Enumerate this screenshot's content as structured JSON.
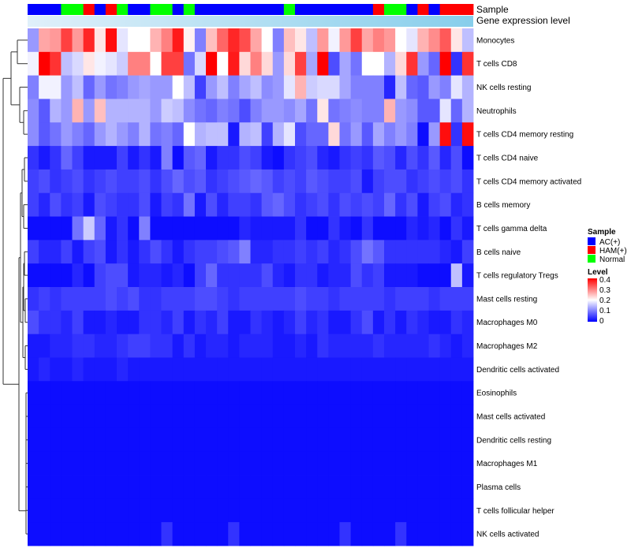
{
  "chart_data": {
    "type": "heatmap",
    "annotation_labels": [
      "Sample",
      "Gene expression level"
    ],
    "rows": [
      "Monocytes",
      "T cells CD8",
      "NK cells resting",
      "Neutrophils",
      "T cells CD4 memory resting",
      "T cells CD4 naive",
      "T cells CD4 memory activated",
      "B cells memory",
      "T cells gamma delta",
      "B cells naive",
      "T cells regulatory  Tregs",
      "Mast cells resting",
      "Macrophages M0",
      "Macrophages M2",
      "Dendritic cells activated",
      "Eosinophils",
      "Mast cells activated",
      "Dendritic cells resting",
      "Macrophages M1",
      "Plasma cells",
      "T cells follicular helper",
      "NK cells activated"
    ],
    "sample_groups": [
      "AC",
      "AC",
      "AC",
      "Normal",
      "Normal",
      "HAM",
      "AC",
      "HAM",
      "Normal",
      "AC",
      "AC",
      "Normal",
      "Normal",
      "AC",
      "Normal",
      "AC",
      "AC",
      "AC",
      "AC",
      "AC",
      "AC",
      "AC",
      "AC",
      "Normal",
      "AC",
      "AC",
      "AC",
      "AC",
      "AC",
      "AC",
      "AC",
      "HAM",
      "Normal",
      "Normal",
      "AC",
      "HAM",
      "AC",
      "HAM",
      "HAM",
      "HAM"
    ],
    "values": [
      [
        0.12,
        0.27,
        0.28,
        0.35,
        0.28,
        0.37,
        0.22,
        0.39,
        0.18,
        0.2,
        0.2,
        0.26,
        0.3,
        0.38,
        0.21,
        0.1,
        0.25,
        0.32,
        0.37,
        0.34,
        0.27,
        0.2,
        0.1,
        0.25,
        0.22,
        0.15,
        0.28,
        0.19,
        0.28,
        0.35,
        0.27,
        0.3,
        0.28,
        0.2,
        0.18,
        0.26,
        0.29,
        0.33,
        0.22,
        0.15
      ],
      [
        0.19,
        0.42,
        0.36,
        0.15,
        0.17,
        0.22,
        0.19,
        0.18,
        0.16,
        0.3,
        0.3,
        0.2,
        0.35,
        0.35,
        0.09,
        0.17,
        0.42,
        0.2,
        0.38,
        0.23,
        0.3,
        0.23,
        0.12,
        0.23,
        0.35,
        0.13,
        0.42,
        0.06,
        0.13,
        0.09,
        0.2,
        0.2,
        0.14,
        0.23,
        0.36,
        0.12,
        0.08,
        0.41,
        0.04,
        0.36
      ],
      [
        0.1,
        0.19,
        0.19,
        0.12,
        0.15,
        0.08,
        0.12,
        0.09,
        0.1,
        0.12,
        0.13,
        0.12,
        0.12,
        0.2,
        0.15,
        0.05,
        0.12,
        0.15,
        0.1,
        0.13,
        0.15,
        0.11,
        0.12,
        0.18,
        0.26,
        0.16,
        0.17,
        0.17,
        0.13,
        0.1,
        0.1,
        0.1,
        0.03,
        0.15,
        0.08,
        0.07,
        0.12,
        0.1,
        0.18,
        0.14
      ],
      [
        0.11,
        0.07,
        0.14,
        0.12,
        0.26,
        0.12,
        0.25,
        0.14,
        0.14,
        0.14,
        0.14,
        0.12,
        0.16,
        0.15,
        0.11,
        0.09,
        0.08,
        0.1,
        0.09,
        0.06,
        0.1,
        0.12,
        0.12,
        0.11,
        0.13,
        0.09,
        0.22,
        0.09,
        0.1,
        0.11,
        0.1,
        0.1,
        0.26,
        0.12,
        0.11,
        0.07,
        0.07,
        0.18,
        0.08,
        0.14
      ],
      [
        0.11,
        0.07,
        0.09,
        0.12,
        0.1,
        0.08,
        0.12,
        0.14,
        0.12,
        0.1,
        0.14,
        0.09,
        0.1,
        0.08,
        0.2,
        0.14,
        0.15,
        0.15,
        0.02,
        0.14,
        0.15,
        0.05,
        0.14,
        0.18,
        0.06,
        0.08,
        0.08,
        0.23,
        0.09,
        0.12,
        0.07,
        0.13,
        0.1,
        0.12,
        0.1,
        0.01,
        0.12,
        0.39,
        0.04,
        0.39
      ],
      [
        0.04,
        0.02,
        0.04,
        0.08,
        0.05,
        0.02,
        0.02,
        0.02,
        0.05,
        0.02,
        0.04,
        0.02,
        0.1,
        0.01,
        0.07,
        0.08,
        0.02,
        0.04,
        0.04,
        0.06,
        0.05,
        0.02,
        0.01,
        0.04,
        0.05,
        0.06,
        0.03,
        0.02,
        0.04,
        0.05,
        0.04,
        0.07,
        0.06,
        0.03,
        0.06,
        0.04,
        0.07,
        0.03,
        0.06,
        0.01
      ],
      [
        0.05,
        0.06,
        0.04,
        0.05,
        0.06,
        0.04,
        0.05,
        0.06,
        0.05,
        0.05,
        0.06,
        0.04,
        0.06,
        0.08,
        0.06,
        0.07,
        0.04,
        0.05,
        0.06,
        0.07,
        0.08,
        0.07,
        0.05,
        0.06,
        0.05,
        0.07,
        0.06,
        0.05,
        0.05,
        0.06,
        0.02,
        0.05,
        0.06,
        0.06,
        0.04,
        0.05,
        0.06,
        0.05,
        0.06,
        0.04
      ],
      [
        0.05,
        0.03,
        0.06,
        0.04,
        0.05,
        0.02,
        0.06,
        0.05,
        0.04,
        0.04,
        0.06,
        0.02,
        0.05,
        0.04,
        0.09,
        0.02,
        0.06,
        0.03,
        0.05,
        0.05,
        0.04,
        0.07,
        0.08,
        0.06,
        0.04,
        0.05,
        0.06,
        0.04,
        0.06,
        0.05,
        0.06,
        0.05,
        0.08,
        0.04,
        0.06,
        0.02,
        0.05,
        0.06,
        0.03,
        0.04
      ],
      [
        0.01,
        0.01,
        0.01,
        0.01,
        0.09,
        0.16,
        0.08,
        0.02,
        0.04,
        0.01,
        0.1,
        0.01,
        0.01,
        0.01,
        0.01,
        0.01,
        0.01,
        0.01,
        0.01,
        0.03,
        0.02,
        0.02,
        0.02,
        0.02,
        0.04,
        0.01,
        0.01,
        0.04,
        0.02,
        0.01,
        0.04,
        0.01,
        0.01,
        0.01,
        0.03,
        0.02,
        0.03,
        0.01,
        0.04,
        0.02
      ],
      [
        0.05,
        0.03,
        0.03,
        0.05,
        0.02,
        0.05,
        0.06,
        0.02,
        0.04,
        0.02,
        0.04,
        0.06,
        0.04,
        0.02,
        0.04,
        0.05,
        0.05,
        0.06,
        0.07,
        0.1,
        0.03,
        0.03,
        0.04,
        0.04,
        0.05,
        0.04,
        0.05,
        0.03,
        0.04,
        0.06,
        0.09,
        0.07,
        0.04,
        0.04,
        0.04,
        0.04,
        0.04,
        0.03,
        0.02,
        0.05
      ],
      [
        0.01,
        0.01,
        0.01,
        0.01,
        0.03,
        0.01,
        0.05,
        0.06,
        0.06,
        0.02,
        0.03,
        0.03,
        0.02,
        0.03,
        0.01,
        0.05,
        0.08,
        0.04,
        0.04,
        0.04,
        0.04,
        0.06,
        0.03,
        0.02,
        0.04,
        0.04,
        0.02,
        0.03,
        0.03,
        0.06,
        0.04,
        0.05,
        0.02,
        0.02,
        0.02,
        0.01,
        0.01,
        0.01,
        0.15,
        0.02
      ],
      [
        0.04,
        0.05,
        0.04,
        0.05,
        0.05,
        0.05,
        0.05,
        0.06,
        0.05,
        0.06,
        0.04,
        0.04,
        0.05,
        0.05,
        0.05,
        0.06,
        0.06,
        0.05,
        0.04,
        0.05,
        0.05,
        0.05,
        0.05,
        0.05,
        0.06,
        0.05,
        0.05,
        0.04,
        0.05,
        0.05,
        0.05,
        0.05,
        0.04,
        0.05,
        0.05,
        0.05,
        0.04,
        0.05,
        0.05,
        0.05
      ],
      [
        0.06,
        0.04,
        0.04,
        0.03,
        0.05,
        0.02,
        0.02,
        0.03,
        0.02,
        0.02,
        0.04,
        0.04,
        0.03,
        0.05,
        0.02,
        0.04,
        0.03,
        0.05,
        0.02,
        0.02,
        0.04,
        0.03,
        0.02,
        0.03,
        0.05,
        0.03,
        0.04,
        0.02,
        0.02,
        0.04,
        0.06,
        0.02,
        0.04,
        0.02,
        0.04,
        0.03,
        0.02,
        0.02,
        0.04,
        0.03
      ],
      [
        0.02,
        0.02,
        0.03,
        0.03,
        0.04,
        0.04,
        0.03,
        0.03,
        0.04,
        0.05,
        0.05,
        0.04,
        0.04,
        0.02,
        0.04,
        0.02,
        0.03,
        0.03,
        0.02,
        0.03,
        0.03,
        0.03,
        0.02,
        0.02,
        0.03,
        0.02,
        0.04,
        0.03,
        0.03,
        0.03,
        0.03,
        0.04,
        0.03,
        0.03,
        0.03,
        0.03,
        0.04,
        0.03,
        0.02,
        0.03
      ],
      [
        0.02,
        0.03,
        0.02,
        0.02,
        0.03,
        0.02,
        0.02,
        0.02,
        0.03,
        0.02,
        0.02,
        0.02,
        0.02,
        0.02,
        0.02,
        0.02,
        0.02,
        0.02,
        0.02,
        0.02,
        0.02,
        0.02,
        0.02,
        0.02,
        0.02,
        0.02,
        0.02,
        0.02,
        0.02,
        0.02,
        0.02,
        0.02,
        0.02,
        0.02,
        0.02,
        0.02,
        0.02,
        0.02,
        0.02,
        0.02
      ],
      [
        0.01,
        0.01,
        0.01,
        0.01,
        0.01,
        0.01,
        0.01,
        0.01,
        0.01,
        0.01,
        0.01,
        0.01,
        0.01,
        0.01,
        0.01,
        0.01,
        0.01,
        0.01,
        0.01,
        0.01,
        0.01,
        0.01,
        0.01,
        0.01,
        0.01,
        0.01,
        0.01,
        0.01,
        0.01,
        0.01,
        0.01,
        0.01,
        0.01,
        0.01,
        0.01,
        0.01,
        0.01,
        0.01,
        0.01,
        0.01
      ],
      [
        0.01,
        0.01,
        0.01,
        0.01,
        0.01,
        0.01,
        0.01,
        0.01,
        0.01,
        0.01,
        0.01,
        0.01,
        0.01,
        0.01,
        0.01,
        0.01,
        0.01,
        0.01,
        0.01,
        0.01,
        0.01,
        0.01,
        0.01,
        0.01,
        0.01,
        0.01,
        0.01,
        0.01,
        0.01,
        0.01,
        0.01,
        0.01,
        0.01,
        0.01,
        0.01,
        0.01,
        0.01,
        0.01,
        0.01,
        0.01
      ],
      [
        0.01,
        0.01,
        0.01,
        0.01,
        0.01,
        0.01,
        0.01,
        0.01,
        0.01,
        0.01,
        0.01,
        0.01,
        0.01,
        0.01,
        0.01,
        0.01,
        0.01,
        0.01,
        0.01,
        0.01,
        0.01,
        0.01,
        0.01,
        0.01,
        0.01,
        0.01,
        0.01,
        0.01,
        0.01,
        0.01,
        0.01,
        0.01,
        0.01,
        0.01,
        0.01,
        0.01,
        0.01,
        0.01,
        0.01,
        0.01
      ],
      [
        0.01,
        0.01,
        0.01,
        0.01,
        0.01,
        0.01,
        0.01,
        0.01,
        0.01,
        0.01,
        0.01,
        0.01,
        0.01,
        0.01,
        0.01,
        0.01,
        0.01,
        0.01,
        0.01,
        0.01,
        0.01,
        0.01,
        0.01,
        0.01,
        0.01,
        0.01,
        0.01,
        0.01,
        0.01,
        0.01,
        0.01,
        0.01,
        0.01,
        0.01,
        0.01,
        0.01,
        0.01,
        0.01,
        0.01,
        0.01
      ],
      [
        0.01,
        0.01,
        0.01,
        0.01,
        0.01,
        0.01,
        0.01,
        0.01,
        0.01,
        0.01,
        0.01,
        0.01,
        0.01,
        0.01,
        0.01,
        0.01,
        0.01,
        0.01,
        0.01,
        0.01,
        0.01,
        0.01,
        0.01,
        0.01,
        0.01,
        0.01,
        0.01,
        0.01,
        0.01,
        0.01,
        0.01,
        0.01,
        0.01,
        0.01,
        0.01,
        0.01,
        0.01,
        0.01,
        0.01,
        0.01
      ],
      [
        0.01,
        0.01,
        0.01,
        0.01,
        0.01,
        0.01,
        0.01,
        0.01,
        0.01,
        0.01,
        0.01,
        0.01,
        0.01,
        0.01,
        0.01,
        0.01,
        0.01,
        0.01,
        0.01,
        0.01,
        0.01,
        0.01,
        0.01,
        0.01,
        0.01,
        0.01,
        0.01,
        0.01,
        0.01,
        0.01,
        0.01,
        0.01,
        0.01,
        0.01,
        0.01,
        0.01,
        0.01,
        0.01,
        0.01,
        0.01
      ],
      [
        0.01,
        0.01,
        0.01,
        0.01,
        0.01,
        0.01,
        0.01,
        0.01,
        0.01,
        0.01,
        0.01,
        0.01,
        0.04,
        0.01,
        0.01,
        0.01,
        0.01,
        0.01,
        0.04,
        0.01,
        0.01,
        0.01,
        0.01,
        0.01,
        0.01,
        0.01,
        0.01,
        0.01,
        0.04,
        0.01,
        0.01,
        0.01,
        0.01,
        0.04,
        0.01,
        0.01,
        0.01,
        0.01,
        0.01,
        0.01
      ]
    ],
    "legend": {
      "sample_title": "Sample",
      "groups": [
        {
          "key": "AC",
          "label": "AC(+)",
          "color": "#0000ff"
        },
        {
          "key": "HAM",
          "label": "HAM(+)",
          "color": "#ff0000"
        },
        {
          "key": "Normal",
          "label": "Normal",
          "color": "#00ff00"
        }
      ],
      "level_title": "Level",
      "level_range": [
        0,
        0.4
      ],
      "level_ticks": [
        "0.4",
        "0.3",
        "0.2",
        "0.1",
        "0"
      ]
    },
    "colors": {
      "low": "#0000ff",
      "mid": "#ffffff",
      "high": "#ff0000",
      "gene_expression_bar": "#87ceeb"
    }
  }
}
